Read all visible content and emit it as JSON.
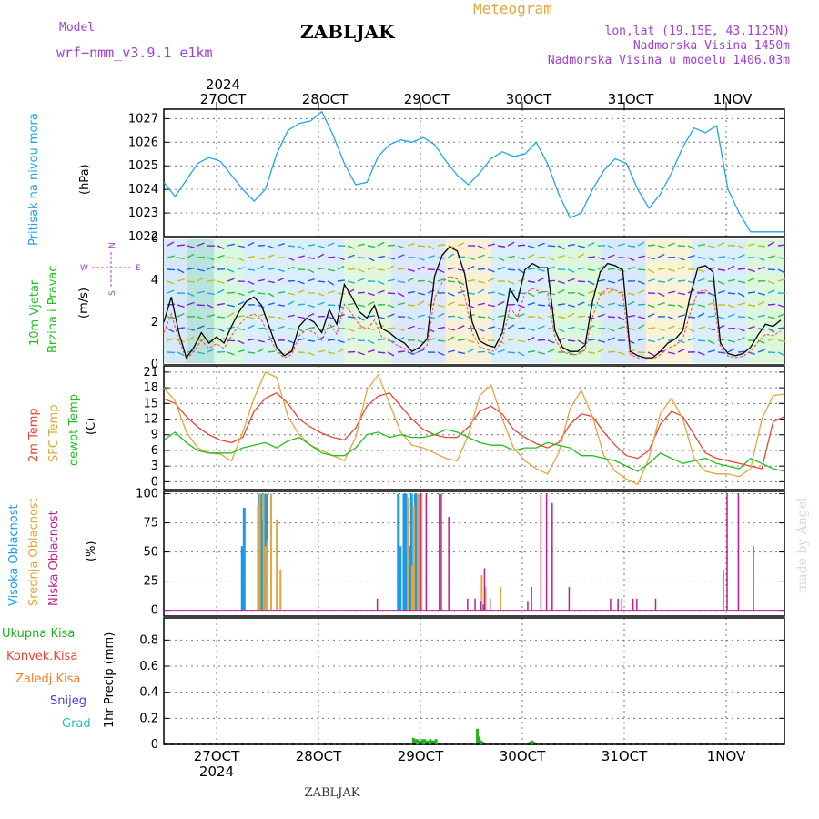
{
  "header": {
    "model_label": "Model",
    "model_name": "wrf−nmm_v3.9.1  e1km",
    "station": "ZABLJAK",
    "product": "Meteogram",
    "coords": "lon,lat (19.15E, 43.1125N)",
    "elevation": "Nadmorska Visina 1450m",
    "model_elevation": "Nadmorska Visina u modelu 1406.03m",
    "footer_station": "ZABLJAK",
    "watermark": "made by Angel"
  },
  "colors": {
    "pressure": "#1ea7e6",
    "temp2m": "#e8453a",
    "sfc": "#e3a63c",
    "dewpt": "#20c020",
    "wind_obs": "#000000",
    "gust": "#ff4040",
    "cloud_high": "#1a9ae8",
    "cloud_mid": "#e3a63c",
    "cloud_low": "#c0208f",
    "precip": "#20b020",
    "header_purple": "#a040d0",
    "header_orange": "#e3a63c"
  },
  "time_axis": {
    "year_label": "2024",
    "dates": [
      "27OCT",
      "28OCT",
      "29OCT",
      "30OCT",
      "31OCT",
      "1NOV"
    ]
  },
  "panels": {
    "pressure": {
      "labels": [
        "Pritisak na nivou mora"
      ],
      "units": "(hPa)"
    },
    "wind": {
      "labels": [
        "10m Vjetar",
        "Brzina i Pravac"
      ],
      "units": "(m/s)",
      "compass": {
        "n": "N",
        "e": "E",
        "w": "W",
        "s": "S"
      }
    },
    "temp": {
      "labels": [
        "2m Temp",
        "SFC Temp",
        "dewpt Temp"
      ],
      "units": "(C)"
    },
    "cloud": {
      "labels": [
        "Visoka Oblacnost",
        "Srednja Oblacnost",
        "Niska Oblacnost"
      ],
      "units": "(%)"
    },
    "precip": {
      "labels": [
        "Ukupna Kisa",
        "Konvek.Kisa",
        "Zaledj.Kisa",
        "Snijeg",
        "Grad"
      ],
      "units": "1hr Precip (mm)"
    }
  },
  "chart_data": [
    {
      "type": "line",
      "ylim": [
        1022,
        1027.4
      ],
      "yticks": [
        1022,
        1023,
        1024,
        1025,
        1026,
        1027
      ],
      "grid": true,
      "series": [
        {
          "x": [
            0,
            3,
            6,
            9,
            12,
            15,
            18,
            21,
            24,
            27,
            30,
            33,
            36,
            39,
            42,
            45,
            48,
            51,
            54,
            57,
            60,
            63,
            66,
            69,
            72,
            75,
            78,
            81,
            84,
            87,
            90,
            93,
            96,
            99,
            102,
            105,
            108,
            111,
            114,
            117,
            120,
            123,
            126,
            129,
            132,
            135,
            138,
            141,
            144,
            147,
            150,
            153,
            156,
            159,
            162,
            165
          ],
          "y": [
            1024.3,
            1023.7,
            1024.4,
            1025.1,
            1025.35,
            1025.2,
            1024.6,
            1024.0,
            1023.5,
            1024.0,
            1025.5,
            1026.5,
            1026.8,
            1026.9,
            1027.3,
            1026.3,
            1025.1,
            1024.2,
            1024.3,
            1025.4,
            1025.9,
            1026.1,
            1026.0,
            1026.2,
            1025.9,
            1025.2,
            1024.6,
            1024.2,
            1024.7,
            1025.3,
            1025.6,
            1025.4,
            1025.5,
            1026.0,
            1025.1,
            1023.8,
            1022.8,
            1023.0,
            1024.0,
            1024.8,
            1025.3,
            1025.1,
            1024.0,
            1023.2,
            1023.8,
            1024.7,
            1025.8,
            1026.6,
            1026.4,
            1026.7,
            1024.0,
            1023.0,
            1022.2,
            1022.2,
            1022.2,
            1022.2
          ],
          "name": ""
        }
      ]
    },
    {
      "type": "line",
      "ylim": [
        0,
        6
      ],
      "yticks": [
        0,
        2,
        4,
        6
      ],
      "grid": true,
      "series": [
        {
          "x": [
            0,
            2,
            4,
            6,
            8,
            10,
            12,
            14,
            16,
            18,
            20,
            22,
            24,
            26,
            28,
            30,
            32,
            34,
            36,
            38,
            40,
            42,
            44,
            46,
            48,
            50,
            52,
            54,
            56,
            58,
            60,
            62,
            64,
            66,
            68,
            70,
            72,
            74,
            76,
            78,
            80,
            82,
            84,
            86,
            88,
            90,
            92,
            94,
            96,
            98,
            100,
            102,
            104,
            106,
            108,
            110,
            112,
            114,
            116,
            118,
            120,
            122,
            124,
            126,
            128,
            130,
            132,
            134,
            136,
            138,
            140,
            142,
            144,
            146,
            148,
            150,
            152,
            154,
            156,
            158,
            160,
            162,
            164
          ],
          "y": [
            2.0,
            3.2,
            1.5,
            0.3,
            0.8,
            1.5,
            1.0,
            1.3,
            1.0,
            1.8,
            2.5,
            3.0,
            3.2,
            2.8,
            1.8,
            0.8,
            0.4,
            0.6,
            1.8,
            2.2,
            2.0,
            1.5,
            2.6,
            1.9,
            3.8,
            3.2,
            2.5,
            2.2,
            2.8,
            1.7,
            1.5,
            1.2,
            1.0,
            0.6,
            0.8,
            1.2,
            4.2,
            5.2,
            5.6,
            5.4,
            4.3,
            2.0,
            1.1,
            0.9,
            0.8,
            1.5,
            3.6,
            3.0,
            4.5,
            4.8,
            4.6,
            4.6,
            1.6,
            0.8,
            0.6,
            0.6,
            0.9,
            3.0,
            4.4,
            4.8,
            4.7,
            4.5,
            0.6,
            0.4,
            0.3,
            0.3,
            0.6,
            1.0,
            1.2,
            1.6,
            3.3,
            4.6,
            4.7,
            4.4,
            1.0,
            0.5,
            0.4,
            0.5,
            0.8,
            1.4,
            1.9,
            1.8,
            2.1
          ],
          "name": ""
        }
      ]
    },
    {
      "type": "line",
      "ylim": [
        -1.5,
        22.2
      ],
      "yticks": [
        0,
        3,
        6,
        9,
        12,
        15,
        18,
        21
      ],
      "grid": true,
      "series": [
        {
          "x": [
            0,
            3,
            6,
            9,
            12,
            15,
            18,
            21,
            24,
            27,
            30,
            33,
            36,
            39,
            42,
            45,
            48,
            51,
            54,
            57,
            60,
            63,
            66,
            69,
            72,
            75,
            78,
            81,
            84,
            87,
            90,
            93,
            96,
            99,
            102,
            105,
            108,
            111,
            114,
            117,
            120,
            123,
            126,
            129,
            132,
            135,
            138,
            141,
            144,
            147,
            150,
            153,
            156,
            159,
            162,
            165
          ],
          "y": [
            15.9,
            15.0,
            12.5,
            10.5,
            9.0,
            8.0,
            7.5,
            8.5,
            13.5,
            16.0,
            17.0,
            15.0,
            12.0,
            10.5,
            9.3,
            8.5,
            8.0,
            10.3,
            14.5,
            16.4,
            17.0,
            14.5,
            12.0,
            10.0,
            9.0,
            8.5,
            8.5,
            10.5,
            13.5,
            14.5,
            13.0,
            10.0,
            8.5,
            7.3,
            6.5,
            7.5,
            11.0,
            13.0,
            12.5,
            9.5,
            7.0,
            5.0,
            4.5,
            6.0,
            11.0,
            13.5,
            12.5,
            9.0,
            5.5,
            4.5,
            4.0,
            3.5,
            3.0,
            2.5,
            11.5,
            12.5
          ],
          "name": ""
        },
        {
          "x": [
            0,
            3,
            6,
            9,
            12,
            15,
            18,
            21,
            24,
            27,
            30,
            33,
            36,
            39,
            42,
            45,
            48,
            51,
            54,
            57,
            60,
            63,
            66,
            69,
            72,
            75,
            78,
            81,
            84,
            87,
            90,
            93,
            96,
            99,
            102,
            105,
            108,
            111,
            114,
            117,
            120,
            123,
            126,
            129,
            132,
            135,
            138,
            141,
            144,
            147,
            150,
            153,
            156,
            159,
            162,
            165
          ],
          "y": [
            18.0,
            15.5,
            9.5,
            6.5,
            5.5,
            5.3,
            4.0,
            9.5,
            16.0,
            21.0,
            20.0,
            12.5,
            9.0,
            7.0,
            6.0,
            5.0,
            4.0,
            8.5,
            17.5,
            20.5,
            15.0,
            9.5,
            7.0,
            6.5,
            5.5,
            4.5,
            4.0,
            9.0,
            16.5,
            18.5,
            12.0,
            6.5,
            4.0,
            2.5,
            1.5,
            5.5,
            14.0,
            17.5,
            12.5,
            5.0,
            2.0,
            0.5,
            -0.5,
            4.5,
            13.0,
            16.0,
            12.0,
            4.5,
            2.0,
            1.5,
            1.5,
            1.0,
            2.5,
            12.0,
            16.5,
            16.8
          ],
          "name": ""
        },
        {
          "x": [
            0,
            3,
            6,
            9,
            12,
            15,
            18,
            21,
            24,
            27,
            30,
            33,
            36,
            39,
            42,
            45,
            48,
            51,
            54,
            57,
            60,
            63,
            66,
            69,
            72,
            75,
            78,
            81,
            84,
            87,
            90,
            93,
            96,
            99,
            102,
            105,
            108,
            111,
            114,
            117,
            120,
            123,
            126,
            129,
            132,
            135,
            138,
            141,
            144,
            147,
            150,
            153,
            156,
            159,
            162,
            165
          ],
          "y": [
            8.0,
            9.5,
            7.5,
            6.0,
            5.5,
            5.5,
            5.5,
            6.5,
            7.0,
            7.5,
            6.5,
            7.8,
            8.5,
            7.0,
            5.5,
            5.0,
            5.0,
            6.5,
            9.0,
            9.5,
            8.5,
            9.0,
            8.5,
            8.5,
            9.0,
            10.0,
            9.5,
            8.5,
            7.5,
            7.0,
            7.0,
            6.0,
            6.5,
            6.5,
            7.5,
            7.0,
            6.5,
            5.0,
            5.0,
            4.5,
            4.0,
            3.0,
            2.0,
            3.5,
            5.5,
            4.5,
            3.5,
            4.0,
            4.5,
            3.5,
            3.0,
            2.5,
            4.5,
            3.5,
            2.5,
            2.0
          ],
          "name": ""
        }
      ]
    },
    {
      "type": "bar",
      "ylim": [
        -5,
        102
      ],
      "yticks": [
        0,
        25,
        50,
        75,
        100
      ],
      "grid": true,
      "series": [
        {
          "x": [
            20.5,
            21.0,
            25.0,
            25.5,
            26.0,
            26.5,
            27.0,
            62.0,
            62.5,
            63.5,
            64.0,
            65.0,
            65.5,
            66.5,
            67.0,
            67.5,
            84.5
          ],
          "values": [
            55,
            88,
            100,
            100,
            78,
            100,
            100,
            100,
            55,
            100,
            100,
            55,
            100,
            100,
            100,
            100,
            5
          ],
          "name": ""
        },
        {
          "x": [
            24.5,
            25.0,
            26.0,
            26.5,
            27.0,
            28.0,
            29.5,
            30.5,
            64.5,
            65.5,
            66.0,
            67.0,
            67.5,
            68.0,
            84.0,
            85.0,
            89.0
          ],
          "values": [
            90,
            100,
            100,
            55,
            60,
            100,
            78,
            35,
            97,
            38,
            90,
            100,
            100,
            100,
            30,
            20,
            20
          ],
          "name": ""
        },
        {
          "x": [
            56.0,
            67.5,
            69.0,
            72.5,
            73.0,
            75.0,
            80.0,
            82.0,
            83.5,
            84.5,
            86.0,
            96.0,
            97.0,
            99.5,
            101.0,
            102.5,
            107.0,
            118.0,
            120.0,
            121.0,
            124.0,
            125.0,
            130.0,
            148.0,
            149.0,
            152.0,
            156.0
          ],
          "values": [
            10,
            100,
            100,
            100,
            100,
            80,
            10,
            10,
            8,
            36,
            10,
            8,
            20,
            100,
            100,
            92,
            20,
            10,
            10,
            10,
            10,
            10,
            10,
            35,
            100,
            100,
            55
          ],
          "name": ""
        }
      ]
    },
    {
      "type": "bar",
      "ylim": [
        0,
        0.97
      ],
      "yticks": [
        0,
        0.2,
        0.4,
        0.6,
        0.8
      ],
      "grid": true,
      "series": [
        {
          "x": [
            66.0,
            66.5,
            67.0,
            67.5,
            68.0,
            68.5,
            69.0,
            69.5,
            70.0,
            70.5,
            71.0,
            71.5,
            72.0,
            83.0,
            83.5,
            84.0,
            84.5,
            96.5,
            97.0,
            97.5,
            98.0
          ],
          "values": [
            0.05,
            0.04,
            0.04,
            0.03,
            0.03,
            0.04,
            0.04,
            0.03,
            0.03,
            0.04,
            0.03,
            0.03,
            0.04,
            0.12,
            0.06,
            0.03,
            0.02,
            0.01,
            0.02,
            0.03,
            0.02
          ],
          "name": ""
        }
      ]
    }
  ]
}
